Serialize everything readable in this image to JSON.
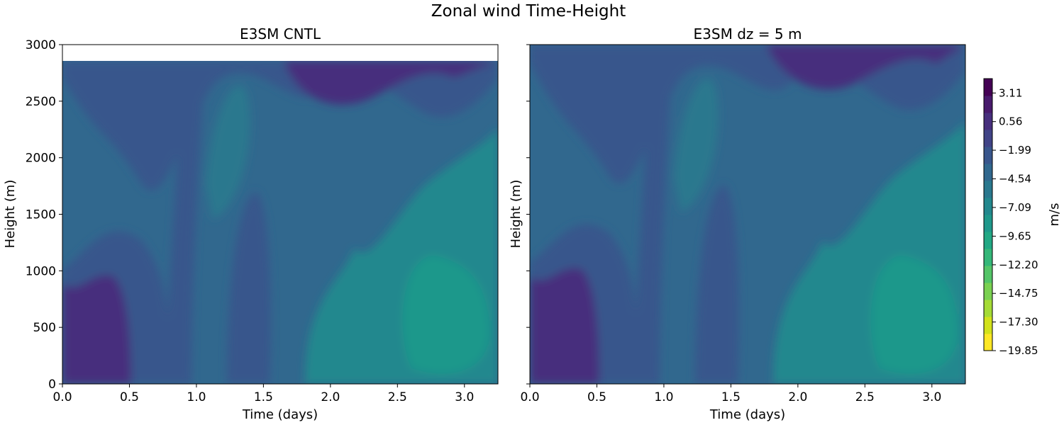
{
  "figure": {
    "title": "Zonal wind Time-Height"
  },
  "chart_data": [
    {
      "type": "heatmap",
      "title": "E3SM CNTL",
      "xlabel": "Time (days)",
      "ylabel": "Height (m)",
      "xlim": [
        0,
        3.25
      ],
      "ylim": [
        0,
        3000
      ],
      "data_top": 2860,
      "xticks": [
        "0.0",
        "0.5",
        "1.0",
        "1.5",
        "2.0",
        "2.5",
        "3.0"
      ],
      "xtick_values": [
        0,
        0.5,
        1.0,
        1.5,
        2.0,
        2.5,
        3.0
      ],
      "yticks": [
        "0",
        "500",
        "1000",
        "1500",
        "2000",
        "2500",
        "3000"
      ],
      "ytick_values": [
        0,
        500,
        1000,
        1500,
        2000,
        2500,
        3000
      ],
      "ytick_labels_visible": true
    },
    {
      "type": "heatmap",
      "title": "E3SM dz = 5 m",
      "xlabel": "Time (days)",
      "ylabel": "Height (m)",
      "xlim": [
        0,
        3.25
      ],
      "ylim": [
        0,
        3000
      ],
      "data_top": 3000,
      "xticks": [
        "0.0",
        "0.5",
        "1.0",
        "1.5",
        "2.0",
        "2.5",
        "3.0"
      ],
      "xtick_values": [
        0,
        0.5,
        1.0,
        1.5,
        2.0,
        2.5,
        3.0
      ],
      "yticks": [
        "0",
        "500",
        "1000",
        "1500",
        "2000",
        "2500",
        "3000"
      ],
      "ytick_values": [
        0,
        500,
        1000,
        1500,
        2000,
        2500,
        3000
      ],
      "ytick_labels_visible": false
    }
  ],
  "colorbar": {
    "label": "m/s",
    "colormap": "viridis_r",
    "range": [
      -19.85,
      4.39
    ],
    "tick_values": [
      3.11,
      0.56,
      -1.99,
      -4.54,
      -7.09,
      -9.65,
      -12.2,
      -14.75,
      -17.3,
      -19.85
    ],
    "tick_labels": [
      "3.11",
      "0.56",
      "−1.99",
      "−4.54",
      "−7.09",
      "−9.65",
      "−12.20",
      "−14.75",
      "−17.30",
      "−19.85"
    ],
    "level_colors": [
      "#fde725",
      "#d2e21b",
      "#a5db36",
      "#7ad151",
      "#54c568",
      "#35b779",
      "#22a884",
      "#1f988b",
      "#23888e",
      "#2a788e",
      "#31688e",
      "#39568c",
      "#414487",
      "#472f7d",
      "#481a6c",
      "#440154"
    ]
  }
}
